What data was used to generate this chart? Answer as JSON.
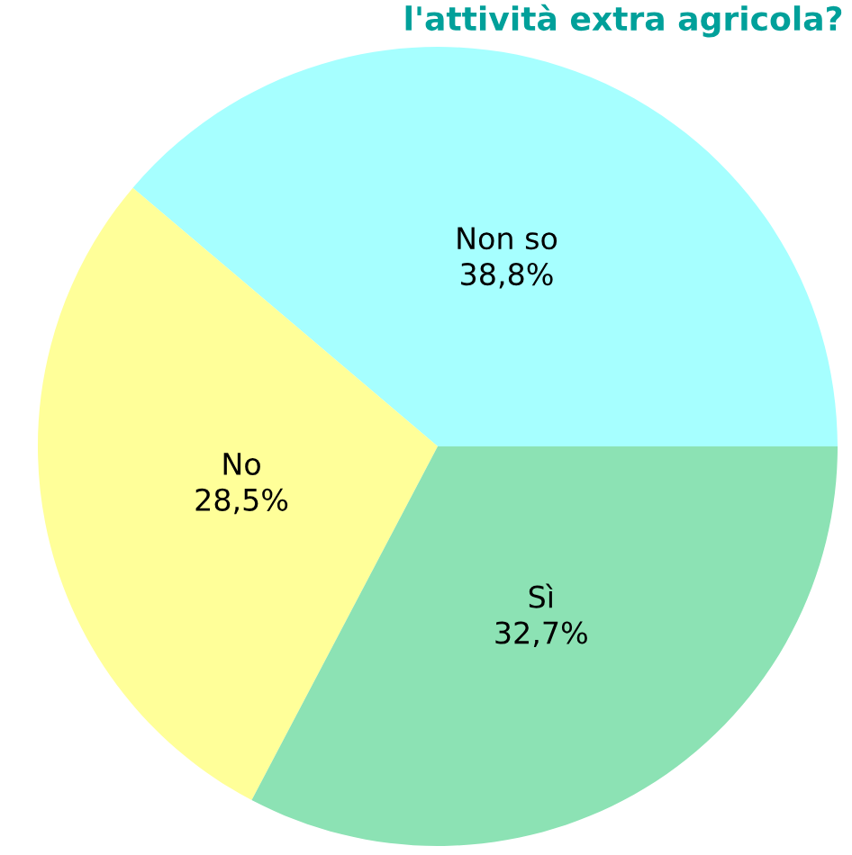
{
  "chart_data": {
    "type": "pie",
    "title": "l'attività extra agricola?",
    "categories": [
      "Non so",
      "No",
      "Sì"
    ],
    "values": [
      38.8,
      28.5,
      32.7
    ],
    "value_labels": [
      "38,8%",
      "28,5%",
      "32,7%"
    ],
    "colors": [
      "#a6ffff",
      "#ffff99",
      "#8ce2b4"
    ]
  }
}
